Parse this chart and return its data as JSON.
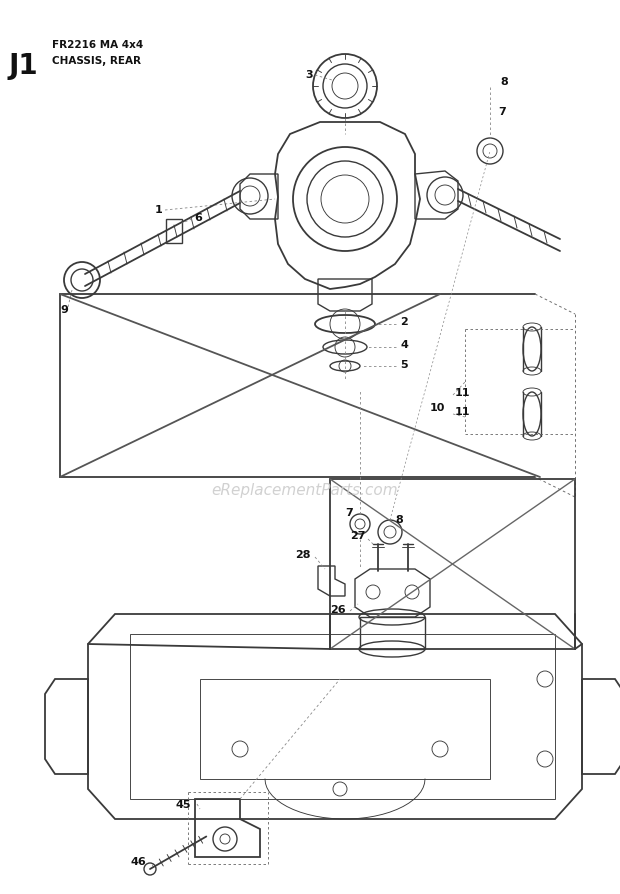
{
  "title_label": "J1",
  "title_model": "FR2216 MA 4x4",
  "title_section": "CHASSIS, REAR",
  "bg_color": "#ffffff",
  "line_color": "#3a3a3a",
  "text_color": "#111111",
  "watermark": "eReplacementParts.com",
  "figsize": [
    6.2,
    8.95
  ],
  "dpi": 100,
  "xlim": [
    0,
    620
  ],
  "ylim": [
    0,
    895
  ]
}
